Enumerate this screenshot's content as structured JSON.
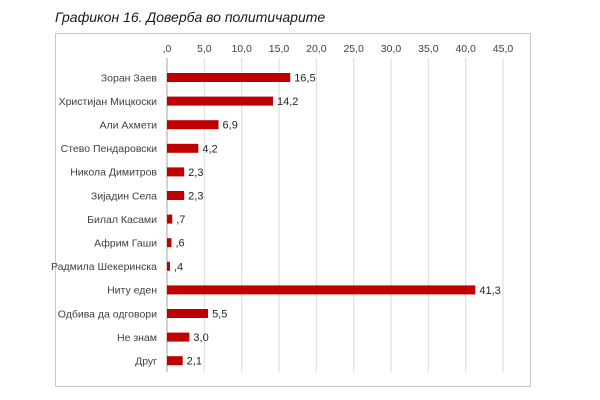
{
  "title": "Графикон 16. Доверба во политичарите",
  "chart_data": {
    "type": "bar",
    "orientation": "horizontal",
    "categories": [
      "Зоран Заев",
      "Христијан Мицкоски",
      "Али Ахмети",
      "Стево Пендаровски",
      "Никола Димитров",
      "Зијадин Села",
      "Билал Касами",
      "Африм Гаши",
      "Радмила Шекеринска",
      "Ниту еден",
      "Одбива да одговори",
      "Не знам",
      "Друг"
    ],
    "values": [
      16.5,
      14.2,
      6.9,
      4.2,
      2.3,
      2.3,
      0.7,
      0.6,
      0.4,
      41.3,
      5.5,
      3.0,
      2.1
    ],
    "value_labels": [
      "16,5",
      "14,2",
      "6,9",
      "4,2",
      "2,3",
      "2,3",
      ",7",
      ",6",
      ",4",
      "41,3",
      "5,5",
      "3,0",
      "2,1"
    ],
    "x_ticks": [
      0,
      5,
      10,
      15,
      20,
      25,
      30,
      35,
      40,
      45
    ],
    "x_tick_labels": [
      ",0",
      "5,0",
      "10,0",
      "15,0",
      "20,0",
      "25,0",
      "30,0",
      "35,0",
      "40,0",
      "45,0"
    ],
    "xlim": [
      0,
      45
    ],
    "grid": true,
    "axis_position": "top",
    "bar_color": "#c00000",
    "gridline_color": "#d9d9d9"
  }
}
